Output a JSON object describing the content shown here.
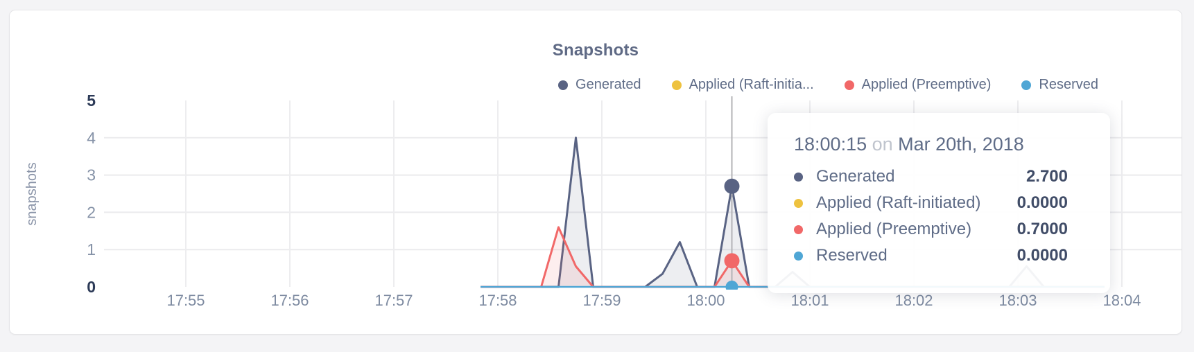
{
  "chart": {
    "title": "Snapshots",
    "y_axis": {
      "label": "snapshots",
      "ticks": [
        0,
        1,
        2,
        3,
        4,
        5
      ],
      "strong_ticks": [
        0,
        5
      ]
    },
    "x_axis": {
      "ticks": [
        "17:55",
        "17:56",
        "17:57",
        "17:58",
        "17:59",
        "18:00",
        "18:01",
        "18:02",
        "18:03",
        "18:04"
      ]
    },
    "legend": {
      "items": [
        {
          "label": "Generated",
          "color": "#596383"
        },
        {
          "label": "Applied (Raft-initia...",
          "color": "#eec23f"
        },
        {
          "label": "Applied (Preemptive)",
          "color": "#f16868"
        },
        {
          "label": "Reserved",
          "color": "#4fa6d5"
        }
      ]
    }
  },
  "chart_data": {
    "type": "area",
    "title": "Snapshots",
    "ylabel": "snapshots",
    "ylim": [
      0,
      5
    ],
    "x_range": [
      "17:55:00",
      "18:04:00"
    ],
    "grid": true,
    "legend_position": "top-right",
    "series": [
      {
        "name": "Generated",
        "color": "#596383",
        "points": [
          [
            "17:57:50",
            0
          ],
          [
            "17:58:35",
            0
          ],
          [
            "17:58:45",
            4.0
          ],
          [
            "17:58:55",
            0
          ],
          [
            "17:59:25",
            0
          ],
          [
            "17:59:35",
            0.35
          ],
          [
            "17:59:45",
            1.2
          ],
          [
            "17:59:55",
            0
          ],
          [
            "18:00:05",
            0
          ],
          [
            "18:00:15",
            2.7
          ],
          [
            "18:00:25",
            0
          ],
          [
            "18:00:40",
            0
          ],
          [
            "18:00:50",
            0.4
          ],
          [
            "18:01:00",
            0
          ],
          [
            "18:02:55",
            0
          ],
          [
            "18:03:05",
            0.55
          ],
          [
            "18:03:15",
            0
          ],
          [
            "18:03:50",
            0
          ]
        ]
      },
      {
        "name": "Applied (Raft-initiated)",
        "color": "#eec23f",
        "points": [
          [
            "17:57:50",
            0
          ],
          [
            "18:03:50",
            0
          ]
        ]
      },
      {
        "name": "Applied (Preemptive)",
        "color": "#f16868",
        "points": [
          [
            "17:57:50",
            0
          ],
          [
            "17:58:25",
            0
          ],
          [
            "17:58:35",
            1.6
          ],
          [
            "17:58:45",
            0.55
          ],
          [
            "17:58:55",
            0
          ],
          [
            "18:00:05",
            0
          ],
          [
            "18:00:15",
            0.7
          ],
          [
            "18:00:25",
            0
          ],
          [
            "18:03:50",
            0
          ]
        ]
      },
      {
        "name": "Reserved",
        "color": "#4fa6d5",
        "points": [
          [
            "17:57:50",
            0
          ],
          [
            "18:03:50",
            0
          ]
        ]
      }
    ],
    "highlight": {
      "time": "18:00:15",
      "points": [
        {
          "series": "Generated",
          "value": 2.7,
          "color": "#596383",
          "radius": 11
        },
        {
          "series": "Applied (Preemptive)",
          "value": 0.7,
          "color": "#f16868",
          "radius": 11
        },
        {
          "series": "Reserved",
          "value": 0,
          "color": "#4fa6d5",
          "radius": 9
        }
      ]
    }
  },
  "tooltip": {
    "time": "18:00:15",
    "on_word": "on",
    "date": "Mar 20th, 2018",
    "rows": [
      {
        "label": "Generated",
        "value": "2.700",
        "color": "#596383"
      },
      {
        "label": "Applied (Raft-initiated)",
        "value": "0.0000",
        "color": "#eec23f"
      },
      {
        "label": "Applied (Preemptive)",
        "value": "0.7000",
        "color": "#f16868"
      },
      {
        "label": "Reserved",
        "value": "0.0000",
        "color": "#4fa6d5"
      }
    ]
  }
}
